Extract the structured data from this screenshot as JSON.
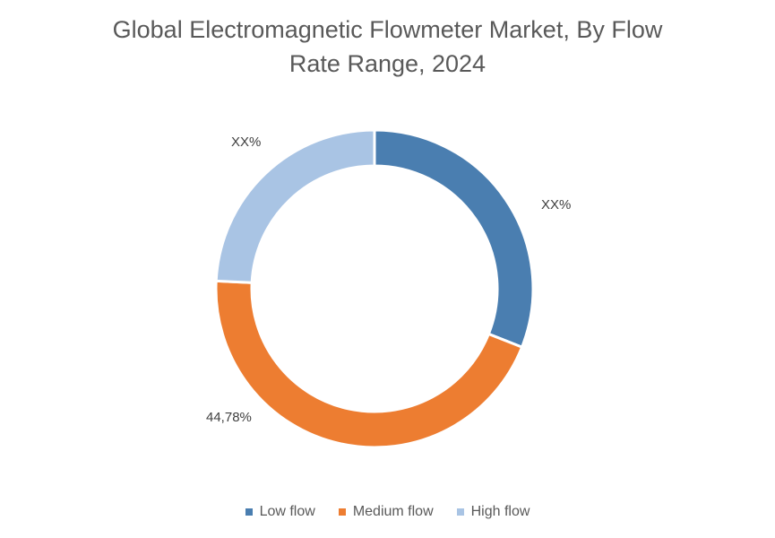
{
  "chart_data": {
    "type": "pie",
    "variant": "donut",
    "title": "Global Electromagnetic Flowmeter Market, By Flow Rate Range, 2024",
    "categories": [
      "Low flow",
      "Medium flow",
      "High flow"
    ],
    "values": [
      31.0,
      44.78,
      24.22
    ],
    "data_labels": [
      "XX%",
      "44,78%",
      "XX%"
    ],
    "colors": [
      "#4a7eb0",
      "#ed7d31",
      "#a9c4e4"
    ],
    "legend_position": "bottom",
    "xlabel": "",
    "ylabel": ""
  },
  "title": {
    "line1": "Global Electromagnetic Flowmeter Market, By Flow",
    "line2": "Rate Range, 2024"
  },
  "labels": {
    "low": "XX%",
    "medium": "44,78%",
    "high": "XX%"
  },
  "legend": [
    {
      "label": "Low flow",
      "color": "#4a7eb0"
    },
    {
      "label": "Medium flow",
      "color": "#ed7d31"
    },
    {
      "label": "High flow",
      "color": "#a9c4e4"
    }
  ]
}
